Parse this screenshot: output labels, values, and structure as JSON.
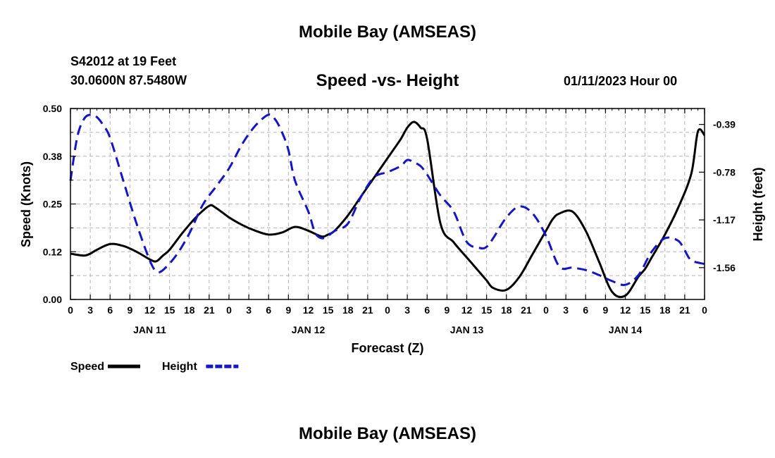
{
  "header": {
    "title": "Mobile Bay (AMSEAS)",
    "station": "S42012 at 19 Feet",
    "coordinates": "30.0600N  87.5480W",
    "subtitle": "Speed -vs- Height",
    "datetime": "01/11/2023 Hour 00"
  },
  "footer": {
    "title": "Mobile Bay (AMSEAS)"
  },
  "chart_data": {
    "type": "line",
    "title": "Speed -vs- Height",
    "xlabel": "Forecast (Z)",
    "ylabel": "Speed (Knots)",
    "y2label": "Height (feet)",
    "xlim": [
      0,
      96
    ],
    "ylim": [
      0,
      0.5
    ],
    "y2lim": [
      -1.82,
      -0.26
    ],
    "x_tick_labels": [
      "0",
      "3",
      "6",
      "9",
      "12",
      "15",
      "18",
      "21",
      "0",
      "3",
      "6",
      "9",
      "12",
      "15",
      "18",
      "21",
      "0",
      "3",
      "6",
      "9",
      "12",
      "15",
      "18",
      "21",
      "0",
      "3",
      "6",
      "9",
      "12",
      "15",
      "18",
      "21",
      "0"
    ],
    "date_labels": [
      {
        "label": "JAN 11",
        "x": 12
      },
      {
        "label": "JAN 12",
        "x": 36
      },
      {
        "label": "JAN 13",
        "x": 60
      },
      {
        "label": "JAN 14",
        "x": 84
      }
    ],
    "y_ticks": [
      "0.00",
      "0.12",
      "0.25",
      "0.38",
      "0.50"
    ],
    "y_tick_values": [
      0,
      0.125,
      0.25,
      0.375,
      0.5
    ],
    "y2_ticks": [
      "-0.39",
      "-0.78",
      "-1.17",
      "-1.56"
    ],
    "y2_tick_values": [
      -0.39,
      -0.78,
      -1.17,
      -1.56
    ],
    "legend": [
      {
        "name": "Speed",
        "color": "#000000",
        "style": "solid"
      },
      {
        "name": "Height",
        "color": "#1414c8",
        "style": "dashed"
      }
    ],
    "series": [
      {
        "name": "Speed",
        "axis": "left",
        "color": "#000000",
        "dash": "solid",
        "x": [
          0,
          2,
          3,
          4,
          6,
          8,
          10,
          12,
          13,
          14,
          15,
          17,
          19,
          21,
          22,
          24,
          26,
          28,
          30,
          32,
          34,
          36,
          38,
          39,
          40,
          42,
          44,
          46,
          48,
          50,
          51,
          52,
          53,
          54,
          56,
          58,
          60,
          62,
          63,
          64,
          66,
          68,
          70,
          72,
          73,
          74,
          76,
          78,
          80,
          82,
          84,
          86,
          87,
          88,
          90,
          92,
          94,
          95,
          96
        ],
        "y": [
          0.12,
          0.115,
          0.12,
          0.13,
          0.145,
          0.14,
          0.125,
          0.105,
          0.1,
          0.115,
          0.13,
          0.175,
          0.215,
          0.245,
          0.24,
          0.215,
          0.195,
          0.18,
          0.17,
          0.175,
          0.19,
          0.18,
          0.165,
          0.17,
          0.18,
          0.22,
          0.27,
          0.32,
          0.37,
          0.42,
          0.45,
          0.465,
          0.45,
          0.42,
          0.2,
          0.15,
          0.11,
          0.07,
          0.05,
          0.03,
          0.025,
          0.06,
          0.12,
          0.18,
          0.21,
          0.225,
          0.23,
          0.18,
          0.1,
          0.02,
          0.01,
          0.06,
          0.08,
          0.11,
          0.17,
          0.24,
          0.33,
          0.44,
          0.43
        ]
      },
      {
        "name": "Height",
        "axis": "right",
        "color": "#1414c8",
        "dash": "dashed",
        "x": [
          0,
          1,
          2,
          3,
          4,
          5,
          6,
          8,
          10,
          12,
          13,
          14,
          16,
          18,
          20,
          22,
          24,
          26,
          28,
          30,
          31,
          32,
          33,
          34,
          36,
          37,
          38,
          39,
          40,
          42,
          44,
          46,
          48,
          50,
          51,
          52,
          53,
          54,
          56,
          58,
          60,
          62,
          63,
          64,
          66,
          68,
          70,
          72,
          74,
          76,
          78,
          80,
          82,
          84,
          86,
          88,
          90,
          92,
          93,
          94,
          96
        ],
        "y": [
          -0.85,
          -0.5,
          -0.35,
          -0.31,
          -0.33,
          -0.4,
          -0.5,
          -0.85,
          -1.2,
          -1.5,
          -1.59,
          -1.58,
          -1.46,
          -1.28,
          -1.05,
          -0.9,
          -0.75,
          -0.55,
          -0.4,
          -0.31,
          -0.35,
          -0.45,
          -0.6,
          -0.85,
          -1.1,
          -1.27,
          -1.32,
          -1.3,
          -1.26,
          -1.2,
          -0.98,
          -0.82,
          -0.78,
          -0.73,
          -0.68,
          -0.7,
          -0.73,
          -0.8,
          -0.97,
          -1.1,
          -1.35,
          -1.4,
          -1.39,
          -1.32,
          -1.15,
          -1.06,
          -1.12,
          -1.3,
          -1.55,
          -1.56,
          -1.58,
          -1.62,
          -1.67,
          -1.7,
          -1.62,
          -1.43,
          -1.32,
          -1.34,
          -1.42,
          -1.5,
          -1.53
        ]
      }
    ]
  }
}
